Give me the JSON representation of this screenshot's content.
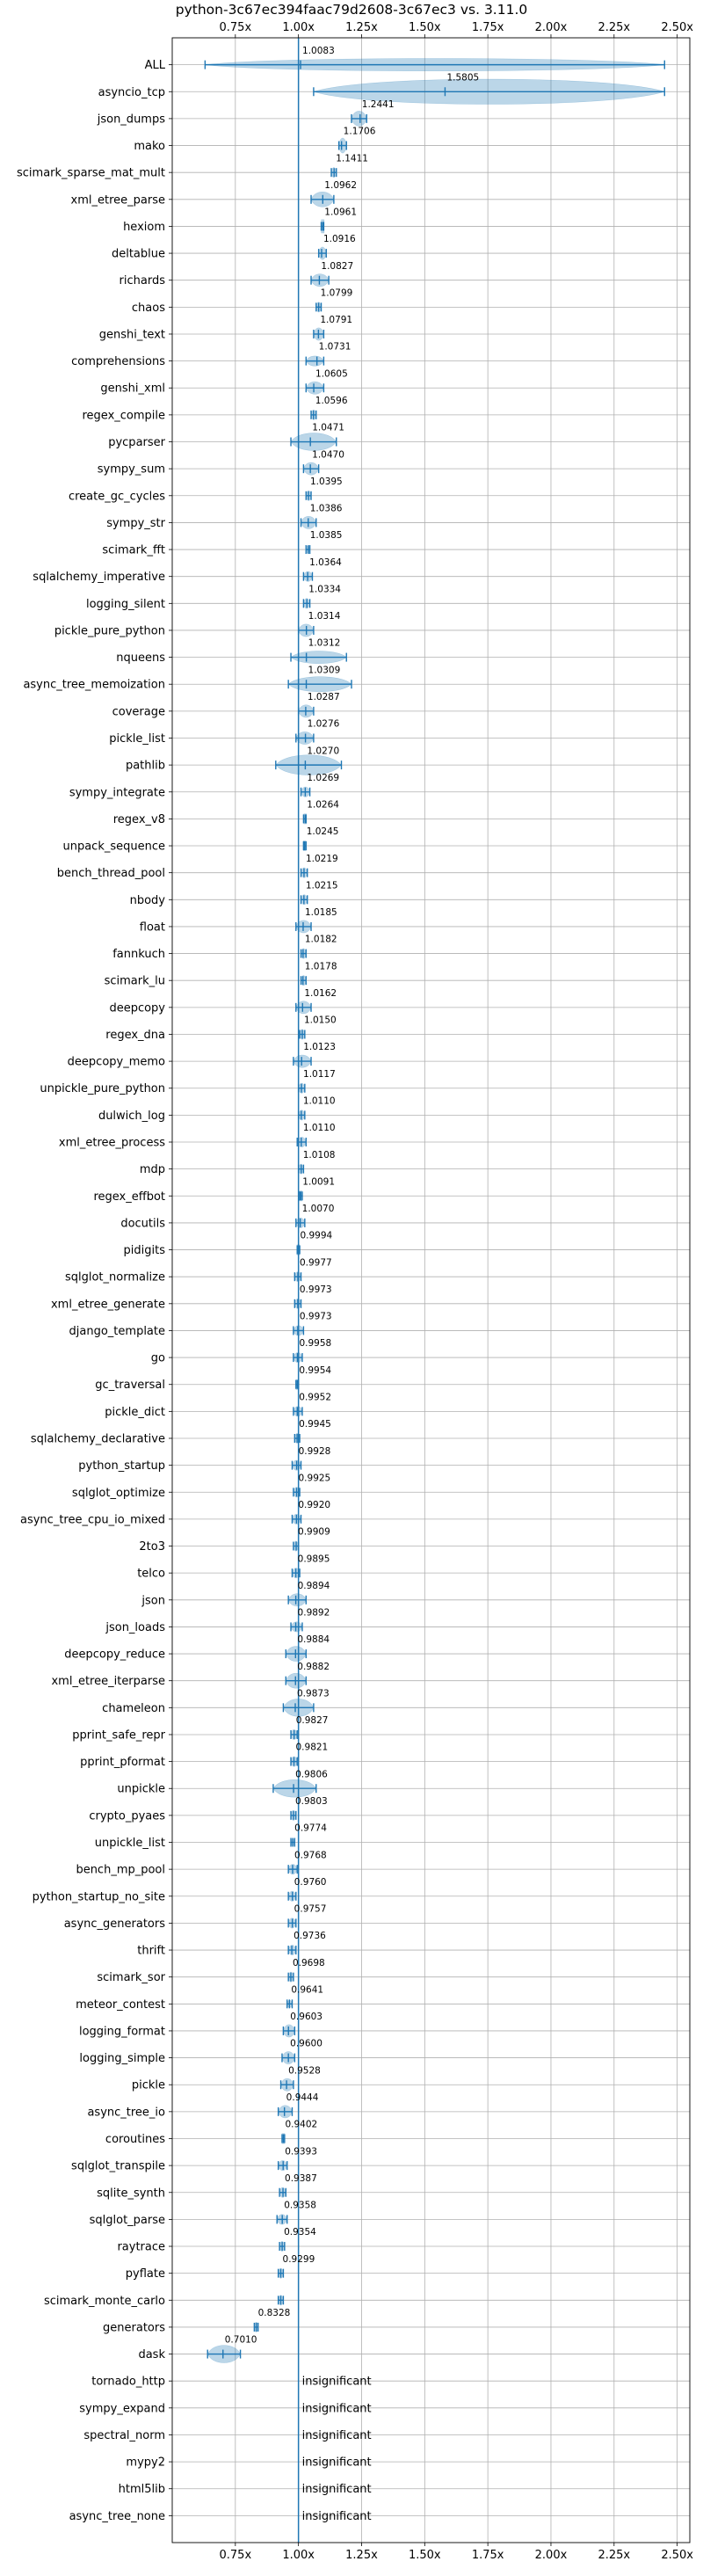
{
  "chart_data": {
    "type": "violin",
    "title": "python-3c67ec394faac79d2608-3c67ec3 vs. 3.11.0",
    "xlim": [
      0.5,
      2.55
    ],
    "x_ticks": [
      0.75,
      1.0,
      1.25,
      1.5,
      1.75,
      2.0,
      2.25,
      2.5
    ],
    "x_tick_labels": [
      "0.75x",
      "1.00x",
      "1.25x",
      "1.50x",
      "1.75x",
      "2.00x",
      "2.25x",
      "2.50x"
    ],
    "reference_line": 1.0,
    "grid": true,
    "colors": {
      "violin": "#1f77b4",
      "reference": "#1f77b4",
      "grid": "#b0b0b0"
    },
    "insignificant_label": "insignificant",
    "benchmarks": [
      {
        "name": "ALL",
        "value": 1.0083,
        "label": "1.0083",
        "min": 0.63,
        "max": 2.45,
        "width": 0.5
      },
      {
        "name": "asyncio_tcp",
        "value": 1.5805,
        "label": "1.5805",
        "min": 1.06,
        "max": 2.45,
        "width": 1.0
      },
      {
        "name": "json_dumps",
        "value": 1.2441,
        "label": "1.2441",
        "min": 1.21,
        "max": 1.27,
        "width": 0.6
      },
      {
        "name": "mako",
        "value": 1.1706,
        "label": "1.1706",
        "min": 1.16,
        "max": 1.19,
        "width": 0.6
      },
      {
        "name": "scimark_sparse_mat_mult",
        "value": 1.1411,
        "label": "1.1411",
        "min": 1.13,
        "max": 1.15,
        "width": 0.4
      },
      {
        "name": "xml_etree_parse",
        "value": 1.0962,
        "label": "1.0962",
        "min": 1.05,
        "max": 1.14,
        "width": 0.6
      },
      {
        "name": "hexiom",
        "value": 1.0961,
        "label": "1.0961",
        "min": 1.09,
        "max": 1.1,
        "width": 0.4
      },
      {
        "name": "deltablue",
        "value": 1.0916,
        "label": "1.0916",
        "min": 1.08,
        "max": 1.11,
        "width": 0.5
      },
      {
        "name": "richards",
        "value": 1.0827,
        "label": "1.0827",
        "min": 1.05,
        "max": 1.12,
        "width": 0.5
      },
      {
        "name": "chaos",
        "value": 1.0799,
        "label": "1.0799",
        "min": 1.07,
        "max": 1.09,
        "width": 0.4
      },
      {
        "name": "genshi_text",
        "value": 1.0791,
        "label": "1.0791",
        "min": 1.06,
        "max": 1.1,
        "width": 0.5
      },
      {
        "name": "comprehensions",
        "value": 1.0731,
        "label": "1.0731",
        "min": 1.03,
        "max": 1.1,
        "width": 0.4
      },
      {
        "name": "genshi_xml",
        "value": 1.0605,
        "label": "1.0605",
        "min": 1.03,
        "max": 1.1,
        "width": 0.5
      },
      {
        "name": "regex_compile",
        "value": 1.0596,
        "label": "1.0596",
        "min": 1.05,
        "max": 1.07,
        "width": 0.4
      },
      {
        "name": "pycparser",
        "value": 1.0471,
        "label": "1.0471",
        "min": 0.97,
        "max": 1.15,
        "width": 0.7
      },
      {
        "name": "sympy_sum",
        "value": 1.047,
        "label": "1.0470",
        "min": 1.02,
        "max": 1.08,
        "width": 0.5
      },
      {
        "name": "create_gc_cycles",
        "value": 1.0395,
        "label": "1.0395",
        "min": 1.03,
        "max": 1.05,
        "width": 0.4
      },
      {
        "name": "sympy_str",
        "value": 1.0386,
        "label": "1.0386",
        "min": 1.01,
        "max": 1.07,
        "width": 0.5
      },
      {
        "name": "scimark_fft",
        "value": 1.0385,
        "label": "1.0385",
        "min": 1.03,
        "max": 1.045,
        "width": 0.3
      },
      {
        "name": "sqlalchemy_imperative",
        "value": 1.0364,
        "label": "1.0364",
        "min": 1.02,
        "max": 1.055,
        "width": 0.4
      },
      {
        "name": "logging_silent",
        "value": 1.0334,
        "label": "1.0334",
        "min": 1.02,
        "max": 1.045,
        "width": 0.4
      },
      {
        "name": "pickle_pure_python",
        "value": 1.0314,
        "label": "1.0314",
        "min": 1.0,
        "max": 1.06,
        "width": 0.5
      },
      {
        "name": "nqueens",
        "value": 1.0312,
        "label": "1.0312",
        "min": 0.97,
        "max": 1.19,
        "width": 0.5
      },
      {
        "name": "async_tree_memoization",
        "value": 1.0309,
        "label": "1.0309",
        "min": 0.96,
        "max": 1.21,
        "width": 0.6
      },
      {
        "name": "coverage",
        "value": 1.0287,
        "label": "1.0287",
        "min": 1.0,
        "max": 1.06,
        "width": 0.5
      },
      {
        "name": "pickle_list",
        "value": 1.0276,
        "label": "1.0276",
        "min": 0.99,
        "max": 1.06,
        "width": 0.5
      },
      {
        "name": "pathlib",
        "value": 1.027,
        "label": "1.0270",
        "min": 0.91,
        "max": 1.17,
        "width": 0.8
      },
      {
        "name": "sympy_integrate",
        "value": 1.0269,
        "label": "1.0269",
        "min": 1.01,
        "max": 1.045,
        "width": 0.4
      },
      {
        "name": "regex_v8",
        "value": 1.0264,
        "label": "1.0264",
        "min": 1.02,
        "max": 1.03,
        "width": 0.3
      },
      {
        "name": "unpack_sequence",
        "value": 1.0245,
        "label": "1.0245",
        "min": 1.02,
        "max": 1.03,
        "width": 0.3
      },
      {
        "name": "bench_thread_pool",
        "value": 1.0219,
        "label": "1.0219",
        "min": 1.01,
        "max": 1.035,
        "width": 0.4
      },
      {
        "name": "nbody",
        "value": 1.0215,
        "label": "1.0215",
        "min": 1.01,
        "max": 1.035,
        "width": 0.4
      },
      {
        "name": "float",
        "value": 1.0185,
        "label": "1.0185",
        "min": 0.99,
        "max": 1.05,
        "width": 0.5
      },
      {
        "name": "fannkuch",
        "value": 1.0182,
        "label": "1.0182",
        "min": 1.01,
        "max": 1.03,
        "width": 0.4
      },
      {
        "name": "scimark_lu",
        "value": 1.0178,
        "label": "1.0178",
        "min": 1.01,
        "max": 1.03,
        "width": 0.4
      },
      {
        "name": "deepcopy",
        "value": 1.0162,
        "label": "1.0162",
        "min": 0.99,
        "max": 1.05,
        "width": 0.5
      },
      {
        "name": "regex_dna",
        "value": 1.015,
        "label": "1.0150",
        "min": 1.005,
        "max": 1.025,
        "width": 0.4
      },
      {
        "name": "deepcopy_memo",
        "value": 1.0123,
        "label": "1.0123",
        "min": 0.98,
        "max": 1.05,
        "width": 0.5
      },
      {
        "name": "unpickle_pure_python",
        "value": 1.0117,
        "label": "1.0117",
        "min": 1.0,
        "max": 1.025,
        "width": 0.4
      },
      {
        "name": "dulwich_log",
        "value": 1.011,
        "label": "1.0110",
        "min": 1.0,
        "max": 1.025,
        "width": 0.4
      },
      {
        "name": "xml_etree_process",
        "value": 1.011,
        "label": "1.0110",
        "min": 0.995,
        "max": 1.03,
        "width": 0.4
      },
      {
        "name": "mdp",
        "value": 1.0108,
        "label": "1.0108",
        "min": 1.0,
        "max": 1.02,
        "width": 0.4
      },
      {
        "name": "regex_effbot",
        "value": 1.0091,
        "label": "1.0091",
        "min": 1.005,
        "max": 1.015,
        "width": 0.3
      },
      {
        "name": "docutils",
        "value": 1.007,
        "label": "1.0070",
        "min": 0.99,
        "max": 1.025,
        "width": 0.4
      },
      {
        "name": "pidigits",
        "value": 0.9994,
        "label": "0.9994",
        "min": 0.995,
        "max": 1.005,
        "width": 0.3
      },
      {
        "name": "sqlglot_normalize",
        "value": 0.9977,
        "label": "0.9977",
        "min": 0.985,
        "max": 1.01,
        "width": 0.4
      },
      {
        "name": "xml_etree_generate",
        "value": 0.9973,
        "label": "0.9973",
        "min": 0.985,
        "max": 1.01,
        "width": 0.4
      },
      {
        "name": "django_template",
        "value": 0.9973,
        "label": "0.9973",
        "min": 0.98,
        "max": 1.02,
        "width": 0.4
      },
      {
        "name": "go",
        "value": 0.9958,
        "label": "0.9958",
        "min": 0.98,
        "max": 1.015,
        "width": 0.4
      },
      {
        "name": "gc_traversal",
        "value": 0.9954,
        "label": "0.9954",
        "min": 0.99,
        "max": 1.0,
        "width": 0.3
      },
      {
        "name": "pickle_dict",
        "value": 0.9952,
        "label": "0.9952",
        "min": 0.98,
        "max": 1.015,
        "width": 0.4
      },
      {
        "name": "sqlalchemy_declarative",
        "value": 0.9945,
        "label": "0.9945",
        "min": 0.985,
        "max": 1.005,
        "width": 0.4
      },
      {
        "name": "python_startup",
        "value": 0.9928,
        "label": "0.9928",
        "min": 0.975,
        "max": 1.01,
        "width": 0.4
      },
      {
        "name": "sqlglot_optimize",
        "value": 0.9925,
        "label": "0.9925",
        "min": 0.98,
        "max": 1.005,
        "width": 0.4
      },
      {
        "name": "async_tree_cpu_io_mixed",
        "value": 0.992,
        "label": "0.9920",
        "min": 0.975,
        "max": 1.01,
        "width": 0.4
      },
      {
        "name": "2to3",
        "value": 0.9909,
        "label": "0.9909",
        "min": 0.98,
        "max": 1.0,
        "width": 0.4
      },
      {
        "name": "telco",
        "value": 0.9895,
        "label": "0.9895",
        "min": 0.975,
        "max": 1.005,
        "width": 0.4
      },
      {
        "name": "json",
        "value": 0.9894,
        "label": "0.9894",
        "min": 0.96,
        "max": 1.03,
        "width": 0.5
      },
      {
        "name": "json_loads",
        "value": 0.9892,
        "label": "0.9892",
        "min": 0.97,
        "max": 1.015,
        "width": 0.4
      },
      {
        "name": "deepcopy_reduce",
        "value": 0.9884,
        "label": "0.9884",
        "min": 0.95,
        "max": 1.03,
        "width": 0.6
      },
      {
        "name": "xml_etree_iterparse",
        "value": 0.9882,
        "label": "0.9882",
        "min": 0.95,
        "max": 1.03,
        "width": 0.6
      },
      {
        "name": "chameleon",
        "value": 0.9873,
        "label": "0.9873",
        "min": 0.94,
        "max": 1.06,
        "width": 0.7
      },
      {
        "name": "pprint_safe_repr",
        "value": 0.9827,
        "label": "0.9827",
        "min": 0.97,
        "max": 0.995,
        "width": 0.4
      },
      {
        "name": "pprint_pformat",
        "value": 0.9821,
        "label": "0.9821",
        "min": 0.97,
        "max": 0.995,
        "width": 0.4
      },
      {
        "name": "unpickle",
        "value": 0.9806,
        "label": "0.9806",
        "min": 0.9,
        "max": 1.07,
        "width": 0.7
      },
      {
        "name": "crypto_pyaes",
        "value": 0.9803,
        "label": "0.9803",
        "min": 0.97,
        "max": 0.99,
        "width": 0.4
      },
      {
        "name": "unpickle_list",
        "value": 0.9774,
        "label": "0.9774",
        "min": 0.97,
        "max": 0.985,
        "width": 0.3
      },
      {
        "name": "bench_mp_pool",
        "value": 0.9768,
        "label": "0.9768",
        "min": 0.96,
        "max": 0.995,
        "width": 0.4
      },
      {
        "name": "python_startup_no_site",
        "value": 0.976,
        "label": "0.9760",
        "min": 0.96,
        "max": 0.99,
        "width": 0.4
      },
      {
        "name": "async_generators",
        "value": 0.9757,
        "label": "0.9757",
        "min": 0.96,
        "max": 0.99,
        "width": 0.4
      },
      {
        "name": "thrift",
        "value": 0.9736,
        "label": "0.9736",
        "min": 0.96,
        "max": 0.99,
        "width": 0.4
      },
      {
        "name": "scimark_sor",
        "value": 0.9698,
        "label": "0.9698",
        "min": 0.96,
        "max": 0.98,
        "width": 0.4
      },
      {
        "name": "meteor_contest",
        "value": 0.9641,
        "label": "0.9641",
        "min": 0.955,
        "max": 0.975,
        "width": 0.3
      },
      {
        "name": "logging_format",
        "value": 0.9603,
        "label": "0.9603",
        "min": 0.94,
        "max": 0.985,
        "width": 0.5
      },
      {
        "name": "logging_simple",
        "value": 0.96,
        "label": "0.9600",
        "min": 0.935,
        "max": 0.985,
        "width": 0.5
      },
      {
        "name": "pickle",
        "value": 0.9528,
        "label": "0.9528",
        "min": 0.93,
        "max": 0.98,
        "width": 0.5
      },
      {
        "name": "async_tree_io",
        "value": 0.9444,
        "label": "0.9444",
        "min": 0.92,
        "max": 0.975,
        "width": 0.5
      },
      {
        "name": "coroutines",
        "value": 0.9402,
        "label": "0.9402",
        "min": 0.935,
        "max": 0.945,
        "width": 0.3
      },
      {
        "name": "sqlglot_transpile",
        "value": 0.9393,
        "label": "0.9393",
        "min": 0.92,
        "max": 0.955,
        "width": 0.4
      },
      {
        "name": "sqlite_synth",
        "value": 0.9387,
        "label": "0.9387",
        "min": 0.925,
        "max": 0.95,
        "width": 0.4
      },
      {
        "name": "sqlglot_parse",
        "value": 0.9358,
        "label": "0.9358",
        "min": 0.915,
        "max": 0.955,
        "width": 0.4
      },
      {
        "name": "raytrace",
        "value": 0.9354,
        "label": "0.9354",
        "min": 0.925,
        "max": 0.945,
        "width": 0.4
      },
      {
        "name": "pyflate",
        "value": 0.9299,
        "label": "0.9299",
        "min": 0.92,
        "max": 0.94,
        "width": 0.4
      },
      {
        "name": "scimark_monte_carlo",
        "value": 0.9299,
        "label": "",
        "min": 0.92,
        "max": 0.94,
        "width": 0.4
      },
      {
        "name": "generators",
        "value": 0.8328,
        "label": "0.8328",
        "min": 0.825,
        "max": 0.84,
        "width": 0.4
      },
      {
        "name": "dask",
        "value": 0.701,
        "label": "0.7010",
        "min": 0.64,
        "max": 0.77,
        "width": 0.7
      },
      {
        "name": "tornado_http",
        "insignificant": true
      },
      {
        "name": "sympy_expand",
        "insignificant": true
      },
      {
        "name": "spectral_norm",
        "insignificant": true
      },
      {
        "name": "mypy2",
        "insignificant": true
      },
      {
        "name": "html5lib",
        "insignificant": true
      },
      {
        "name": "async_tree_none",
        "insignificant": true
      }
    ]
  }
}
